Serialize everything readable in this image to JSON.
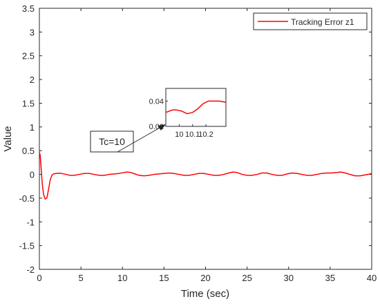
{
  "chart_data": {
    "type": "line",
    "title": "",
    "xlabel": "Time (sec)",
    "ylabel": "Value",
    "xlim": [
      0,
      40
    ],
    "ylim": [
      -2,
      3.5
    ],
    "xticks": [
      0,
      5,
      10,
      15,
      20,
      25,
      30,
      35,
      40
    ],
    "xtick_labels": [
      "0",
      "5",
      "10",
      "15",
      "20",
      "25",
      "30",
      "35",
      "40"
    ],
    "yticks": [
      -2,
      -1.5,
      -1,
      -0.5,
      0,
      0.5,
      1,
      1.5,
      2,
      2.5,
      3,
      3.5
    ],
    "ytick_labels": [
      "-2",
      "-1.5",
      "-1",
      "-0.5",
      "0",
      "0.5",
      "1",
      "1.5",
      "2",
      "2.5",
      "3",
      "3.5"
    ],
    "grid": false,
    "legend_position": "top-right",
    "series": [
      {
        "name": "Tracking Error z1",
        "color": "#ff0000",
        "x": [
          0,
          0.1,
          0.2,
          0.35,
          0.5,
          0.7,
          0.9,
          1.1,
          1.3,
          1.5,
          1.7,
          2.0,
          2.3,
          2.7,
          3.2,
          3.7,
          4.2,
          4.8,
          5.4,
          6.0,
          6.6,
          7.2,
          7.8,
          8.4,
          9.0,
          9.6,
          10.2,
          10.6,
          11.0,
          11.5,
          12.0,
          12.6,
          13.2,
          13.8,
          14.4,
          15.0,
          15.6,
          16.2,
          16.8,
          17.4,
          18.0,
          18.6,
          19.2,
          19.8,
          20.4,
          21.0,
          21.6,
          22.2,
          22.8,
          23.3,
          23.8,
          24.4,
          25.0,
          25.6,
          26.2,
          26.8,
          27.4,
          28.0,
          28.6,
          29.2,
          29.8,
          30.4,
          31.0,
          31.6,
          32.2,
          32.8,
          33.4,
          34.0,
          34.6,
          35.2,
          35.8,
          36.3,
          36.8,
          37.4,
          38.0,
          38.6,
          39.2,
          39.6,
          40.0
        ],
        "values": [
          0.47,
          0.4,
          0.15,
          -0.2,
          -0.42,
          -0.52,
          -0.5,
          -0.32,
          -0.12,
          -0.02,
          0.01,
          0.02,
          0.025,
          0.02,
          0.0,
          -0.02,
          -0.02,
          0.0,
          0.02,
          0.02,
          0.0,
          -0.02,
          -0.02,
          0.0,
          0.01,
          0.02,
          0.04,
          0.05,
          0.04,
          0.01,
          -0.02,
          -0.03,
          -0.02,
          0.0,
          0.01,
          0.02,
          0.03,
          0.02,
          0.0,
          -0.02,
          -0.02,
          0.0,
          0.02,
          0.02,
          0.0,
          -0.02,
          -0.02,
          0.0,
          0.03,
          0.05,
          0.04,
          0.0,
          -0.02,
          -0.02,
          0.0,
          0.03,
          0.03,
          0.0,
          -0.02,
          -0.02,
          0.01,
          0.03,
          0.02,
          0.0,
          -0.02,
          -0.02,
          0.0,
          0.02,
          0.03,
          0.03,
          0.04,
          0.05,
          0.03,
          0.0,
          -0.03,
          -0.03,
          -0.01,
          0.0,
          0.02
        ]
      }
    ],
    "annotation": {
      "label": "Tc=10",
      "arrow_target": [
        10.6,
        0.05
      ]
    },
    "inset": {
      "xlim": [
        9.9,
        10.35
      ],
      "ylim": [
        0.02,
        0.05
      ],
      "xticks": [
        10,
        10.1,
        10.2
      ],
      "xtick_labels": [
        "10",
        "10.1",
        "10.2"
      ],
      "yticks": [
        0.02,
        0.04
      ],
      "ytick_labels": [
        "0.02",
        "0.04"
      ],
      "x": [
        9.9,
        9.95,
        9.98,
        10.02,
        10.06,
        10.1,
        10.14,
        10.18,
        10.22,
        10.26,
        10.3,
        10.35
      ],
      "values": [
        0.031,
        0.033,
        0.033,
        0.032,
        0.03,
        0.031,
        0.034,
        0.038,
        0.04,
        0.04,
        0.04,
        0.039
      ]
    }
  }
}
